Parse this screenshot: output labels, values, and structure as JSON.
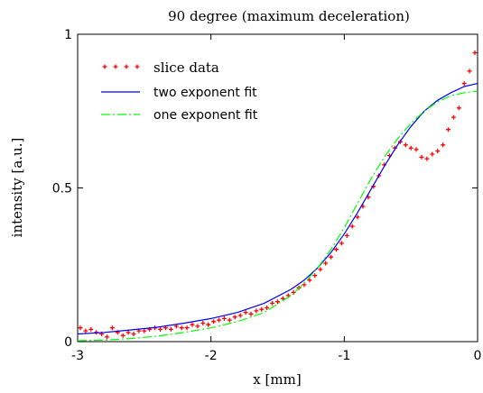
{
  "chart_data": {
    "type": "scatter",
    "title": "90 degree (maximum deceleration)",
    "xlabel": "x [mm]",
    "ylabel": "intensity [a.u.]",
    "xlim": [
      -3,
      0
    ],
    "ylim": [
      0,
      1
    ],
    "x_ticks": [
      {
        "value": -3,
        "label": "-3"
      },
      {
        "value": -2,
        "label": "-2"
      },
      {
        "value": -1,
        "label": "-1"
      },
      {
        "value": 0,
        "label": "0"
      }
    ],
    "y_ticks": [
      {
        "value": 0,
        "label": "0"
      },
      {
        "value": 0.5,
        "label": "0.5"
      },
      {
        "value": 1,
        "label": "1"
      }
    ],
    "grid": false,
    "legend_position": "top-left",
    "series": [
      {
        "name": "slice data",
        "kind": "points",
        "marker": "plus",
        "color": "#ff0000",
        "x": [
          -2.98,
          -2.94,
          -2.9,
          -2.86,
          -2.82,
          -2.78,
          -2.74,
          -2.7,
          -2.66,
          -2.62,
          -2.58,
          -2.54,
          -2.5,
          -2.46,
          -2.42,
          -2.38,
          -2.34,
          -2.3,
          -2.26,
          -2.22,
          -2.18,
          -2.14,
          -2.1,
          -2.06,
          -2.02,
          -1.98,
          -1.94,
          -1.9,
          -1.86,
          -1.82,
          -1.78,
          -1.74,
          -1.7,
          -1.66,
          -1.62,
          -1.58,
          -1.54,
          -1.5,
          -1.46,
          -1.42,
          -1.38,
          -1.34,
          -1.3,
          -1.26,
          -1.22,
          -1.18,
          -1.14,
          -1.1,
          -1.06,
          -1.02,
          -0.98,
          -0.94,
          -0.9,
          -0.86,
          -0.82,
          -0.78,
          -0.74,
          -0.7,
          -0.66,
          -0.62,
          -0.58,
          -0.54,
          -0.5,
          -0.46,
          -0.42,
          -0.38,
          -0.34,
          -0.3,
          -0.26,
          -0.22,
          -0.18,
          -0.14,
          -0.1,
          -0.06,
          -0.02
        ],
        "y": [
          0.045,
          0.035,
          0.04,
          0.03,
          0.025,
          0.015,
          0.045,
          0.03,
          0.02,
          0.03,
          0.025,
          0.035,
          0.035,
          0.04,
          0.045,
          0.04,
          0.045,
          0.04,
          0.05,
          0.045,
          0.045,
          0.055,
          0.05,
          0.06,
          0.055,
          0.065,
          0.07,
          0.075,
          0.07,
          0.08,
          0.085,
          0.095,
          0.09,
          0.1,
          0.105,
          0.11,
          0.125,
          0.13,
          0.14,
          0.15,
          0.16,
          0.175,
          0.185,
          0.2,
          0.215,
          0.235,
          0.255,
          0.275,
          0.3,
          0.32,
          0.345,
          0.375,
          0.405,
          0.44,
          0.47,
          0.505,
          0.54,
          0.575,
          0.605,
          0.63,
          0.65,
          0.64,
          0.63,
          0.625,
          0.6,
          0.595,
          0.61,
          0.62,
          0.64,
          0.69,
          0.73,
          0.76,
          0.84,
          0.88,
          0.94
        ]
      },
      {
        "name": "two exponent fit",
        "kind": "line",
        "dash": "solid",
        "color": "#0000ff",
        "x": [
          -3.0,
          -2.8,
          -2.6,
          -2.4,
          -2.2,
          -2.0,
          -1.8,
          -1.6,
          -1.4,
          -1.3,
          -1.2,
          -1.1,
          -1.0,
          -0.9,
          -0.8,
          -0.7,
          -0.6,
          -0.5,
          -0.4,
          -0.3,
          -0.2,
          -0.1,
          0.0
        ],
        "y": [
          0.025,
          0.03,
          0.038,
          0.047,
          0.06,
          0.075,
          0.095,
          0.125,
          0.17,
          0.2,
          0.24,
          0.29,
          0.35,
          0.42,
          0.495,
          0.57,
          0.64,
          0.7,
          0.75,
          0.785,
          0.81,
          0.83,
          0.84
        ]
      },
      {
        "name": "one exponent fit",
        "kind": "line",
        "dash": "dash-dot",
        "color": "#00ff00",
        "x": [
          -3.0,
          -2.8,
          -2.6,
          -2.4,
          -2.2,
          -2.0,
          -1.8,
          -1.6,
          -1.4,
          -1.3,
          -1.2,
          -1.1,
          -1.0,
          -0.9,
          -0.8,
          -0.7,
          -0.6,
          -0.5,
          -0.4,
          -0.3,
          -0.2,
          -0.1,
          0.0
        ],
        "y": [
          0.003,
          0.005,
          0.01,
          0.018,
          0.03,
          0.045,
          0.065,
          0.095,
          0.15,
          0.19,
          0.24,
          0.3,
          0.37,
          0.45,
          0.53,
          0.6,
          0.66,
          0.71,
          0.75,
          0.78,
          0.8,
          0.81,
          0.815
        ]
      }
    ]
  }
}
